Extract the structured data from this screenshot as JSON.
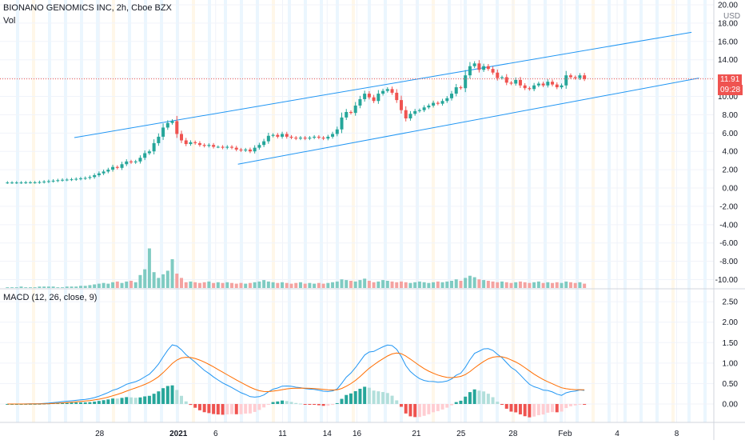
{
  "header": {
    "symbol_line": "BIONANO GENOMICS INC, 2h, Cboe BZX",
    "vol_label": "Vol",
    "currency": "USD"
  },
  "price_tag": {
    "price": "11.91",
    "countdown": "09:28"
  },
  "macd_label": "MACD (12, 26, close, 9)",
  "colors": {
    "up": "#26a69a",
    "down": "#ef5350",
    "channel": "#2196f3",
    "macd_line": "#2196f3",
    "signal_line": "#ff6d00",
    "hist_up_strong": "#26a69a",
    "hist_up_weak": "#b2dfdb",
    "hist_down_strong": "#ef5350",
    "hist_down_weak": "#ffcdd2",
    "session_blue": "#e3f2fd",
    "session_orange": "#fff3e0"
  },
  "chart_data": [
    {
      "type": "candlestick",
      "title": "BIONANO GENOMICS INC, 2h, Cboe BZX",
      "y_ticks": [
        "20.00",
        "18.00",
        "16.00",
        "14.00",
        "12.00",
        "10.00",
        "8.00",
        "6.00",
        "4.00",
        "2.00",
        "0.00",
        "-2.00",
        "-4.00",
        "-6.00",
        "-8.00",
        "-10.00"
      ],
      "ylim": [
        -11,
        20
      ],
      "x_ticks": [
        "28",
        "2021",
        "6",
        "11",
        "14",
        "16",
        "21",
        "25",
        "28",
        "Feb",
        "4",
        "8"
      ],
      "x_tick_positions": [
        0.7,
        6.0,
        8.5,
        13.0,
        16.0,
        18.0,
        22.0,
        25.0,
        28.5,
        32.0,
        35.5,
        39.5
      ],
      "xlim": [
        -6,
        42
      ],
      "last_price": 11.91,
      "closes": [
        0.6,
        0.6,
        0.6,
        0.6,
        0.62,
        0.62,
        0.62,
        0.65,
        0.7,
        0.75,
        0.8,
        0.85,
        0.9,
        0.92,
        0.95,
        1.0,
        1.05,
        1.1,
        1.2,
        1.4,
        1.6,
        1.8,
        2.0,
        2.3,
        2.2,
        2.6,
        2.9,
        2.8,
        2.9,
        3.3,
        3.8,
        4.0,
        4.9,
        5.6,
        6.6,
        7.1,
        7.3,
        5.9,
        5.2,
        4.8,
        5.0,
        4.9,
        4.7,
        4.6,
        4.7,
        4.5,
        4.5,
        4.4,
        4.5,
        4.4,
        4.2,
        4.1,
        4.2,
        4.0,
        4.4,
        4.7,
        5.1,
        5.7,
        5.8,
        5.6,
        5.9,
        5.6,
        5.5,
        5.4,
        5.5,
        5.4,
        5.5,
        5.6,
        5.5,
        5.4,
        5.6,
        5.9,
        6.4,
        7.7,
        8.3,
        8.2,
        9.0,
        9.7,
        10.3,
        9.9,
        9.5,
        10.3,
        10.6,
        10.8,
        10.4,
        9.6,
        8.5,
        7.6,
        8.1,
        8.4,
        8.5,
        8.8,
        9.0,
        9.3,
        9.2,
        9.5,
        9.8,
        10.3,
        11.0,
        10.9,
        12.3,
        13.3,
        13.6,
        12.9,
        13.3,
        13.0,
        12.6,
        12.0,
        12.1,
        11.5,
        11.4,
        11.8,
        11.2,
        10.9,
        10.8,
        11.2,
        11.4,
        11.2,
        11.6,
        11.3,
        11.0,
        11.2,
        12.3,
        12.1,
        12.0,
        12.3,
        11.91
      ],
      "up_channel": {
        "from": [
          -1,
          5.5
        ],
        "to": [
          40.5,
          17.0
        ]
      },
      "low_channel": {
        "from": [
          10,
          2.6
        ],
        "to": [
          41,
          12.0
        ]
      }
    },
    {
      "type": "bar",
      "title": "Vol",
      "values": [
        1,
        1,
        1,
        2,
        1,
        1,
        1,
        2,
        2,
        2,
        2,
        1,
        1,
        2,
        2,
        2,
        3,
        3,
        4,
        5,
        6,
        7,
        6,
        8,
        9,
        7,
        9,
        10,
        8,
        10,
        12,
        12,
        14,
        16,
        18,
        20,
        14,
        10,
        9,
        8,
        9,
        8,
        7,
        8,
        9,
        7,
        8,
        7,
        8,
        7,
        6,
        7,
        6,
        7,
        8,
        9,
        11,
        9,
        8,
        7,
        8,
        7,
        6,
        7,
        8,
        6,
        7,
        6,
        7,
        6,
        7,
        8,
        9,
        12,
        11,
        10,
        9,
        11,
        13,
        10,
        8,
        9,
        11,
        10,
        9,
        8,
        9,
        8,
        7,
        8,
        9,
        8,
        7,
        8,
        9,
        8,
        9,
        10,
        12,
        10,
        14,
        17,
        15,
        12,
        11,
        10,
        9,
        8,
        9,
        8,
        7,
        8,
        9,
        8,
        7,
        8,
        9,
        7,
        8,
        7,
        8,
        7,
        9,
        8,
        7,
        8,
        6
      ],
      "spikes": {
        "29": 18,
        "30": 26,
        "31": 55,
        "32": 22,
        "33": 14,
        "34": 19,
        "35": 24,
        "36": 40,
        "37": 20,
        "38": 14
      },
      "ylim": [
        0,
        100
      ]
    },
    {
      "type": "line",
      "title": "MACD (12, 26, close, 9)",
      "y_ticks": [
        "2.50",
        "2.00",
        "1.50",
        "1.00",
        "0.50",
        "0.00"
      ],
      "ylim": [
        -0.45,
        2.6
      ],
      "series": [
        {
          "key": "macd"
        },
        {
          "key": "signal"
        },
        {
          "key": "histogram"
        }
      ]
    }
  ]
}
